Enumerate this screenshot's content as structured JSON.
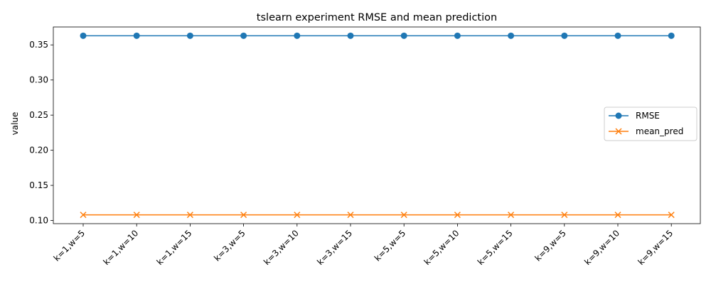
{
  "chart_data": {
    "type": "line",
    "title": "tslearn experiment RMSE and mean prediction",
    "xlabel": "",
    "ylabel": "value",
    "categories": [
      "k=1,w=5",
      "k=1,w=10",
      "k=1,w=15",
      "k=3,w=5",
      "k=3,w=10",
      "k=3,w=15",
      "k=5,w=5",
      "k=5,w=10",
      "k=5,w=15",
      "k=9,w=5",
      "k=9,w=10",
      "k=9,w=15"
    ],
    "ylim": [
      0.0955,
      0.3755
    ],
    "yticks": [
      0.1,
      0.15,
      0.2,
      0.25,
      0.3,
      0.35
    ],
    "ytick_labels": [
      "0.10",
      "0.15",
      "0.20",
      "0.25",
      "0.30",
      "0.35"
    ],
    "grid": false,
    "legend_position": "center-right",
    "series": [
      {
        "name": "RMSE",
        "color": "#1f77b4",
        "marker": "circle",
        "values": [
          0.363,
          0.363,
          0.363,
          0.363,
          0.363,
          0.363,
          0.363,
          0.363,
          0.363,
          0.363,
          0.363,
          0.363
        ]
      },
      {
        "name": "mean_pred",
        "color": "#ff7f0e",
        "marker": "x",
        "values": [
          0.108,
          0.108,
          0.108,
          0.108,
          0.108,
          0.108,
          0.108,
          0.108,
          0.108,
          0.108,
          0.108,
          0.108
        ]
      }
    ]
  }
}
